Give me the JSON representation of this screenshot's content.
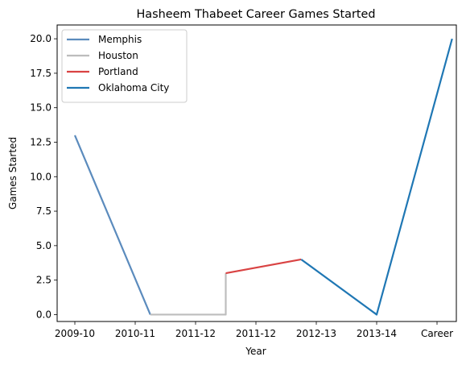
{
  "chart_data": {
    "type": "line",
    "title": "Hasheem Thabeet Career Games Started",
    "xlabel": "Year",
    "ylabel": "Games Started",
    "categories": [
      "2009-10",
      "2010-11",
      "2011-12",
      "2011-12",
      "2012-13",
      "2013-14",
      "Career"
    ],
    "ylim": [
      -0.5,
      21.0
    ],
    "yticks": [
      "0.0",
      "2.5",
      "5.0",
      "7.5",
      "10.0",
      "12.5",
      "15.0",
      "17.5",
      "20.0"
    ],
    "grid": false,
    "legend_position": "top-left",
    "series": [
      {
        "name": "Memphis",
        "color": "#5b8bbd",
        "points": [
          {
            "x": "2009-10",
            "y": 13
          },
          {
            "x": "2010-11",
            "y": 0
          }
        ]
      },
      {
        "name": "Houston",
        "color": "#bdbdbd",
        "points": [
          {
            "x": "2010-11",
            "y": 0
          },
          {
            "x": "2011-12",
            "y": 0
          },
          {
            "x": "2011-12",
            "y": 3
          }
        ]
      },
      {
        "name": "Portland",
        "color": "#d94343",
        "points": [
          {
            "x": "2011-12",
            "y": 3
          },
          {
            "x": "2012-13",
            "y": 4
          }
        ]
      },
      {
        "name": "Oklahoma City",
        "color": "#1f77b4",
        "points": [
          {
            "x": "2012-13",
            "y": 4
          },
          {
            "x": "2013-14",
            "y": 0
          },
          {
            "x": "Career",
            "y": 20
          }
        ]
      }
    ]
  }
}
